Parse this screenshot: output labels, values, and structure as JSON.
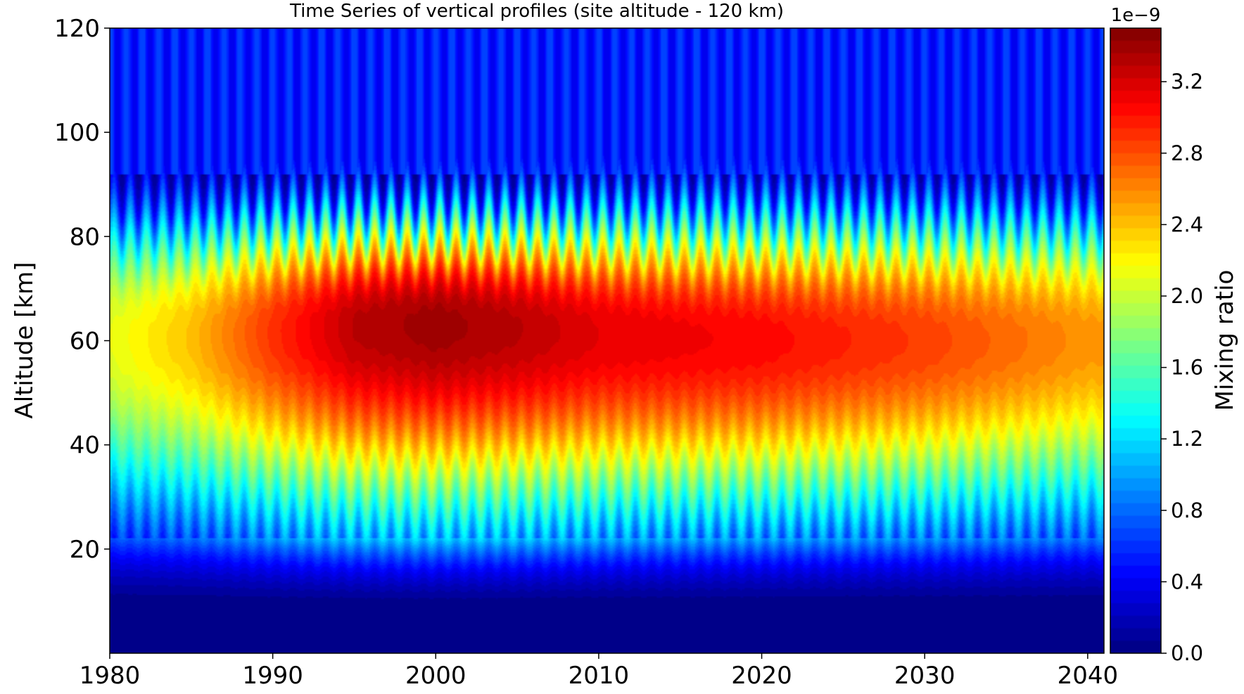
{
  "chart_data": {
    "type": "heatmap",
    "subtype": "filled-contour time-altitude cross-section",
    "title": "Time Series of vertical profiles (site altitude - 120 km)",
    "xlabel": "",
    "ylabel": "Altitude [km]",
    "xlim": [
      1980,
      2041
    ],
    "ylim": [
      0,
      120
    ],
    "xticks": [
      "1980",
      "1990",
      "2000",
      "2010",
      "2020",
      "2030",
      "2040"
    ],
    "yticks": [
      "20",
      "40",
      "60",
      "80",
      "100",
      "120"
    ],
    "grid": false,
    "colorbar": {
      "label": "Mixing ratio",
      "exponent_label": "1e−9",
      "vmin": 0.0,
      "vmax": 3.5,
      "levels": 50,
      "colormap": "jet",
      "ticks": [
        "0.0",
        "0.4",
        "0.8",
        "1.2",
        "1.6",
        "2.0",
        "2.4",
        "2.8",
        "3.2"
      ]
    },
    "features": {
      "max_value": 3.45,
      "max_year": 1999,
      "max_altitude_km": 63,
      "seasonal_cycle": "annual oscillation strongest above 85 km and below 30 km"
    },
    "series": [
      {
        "x": [
          1980,
          1985,
          1990,
          1995,
          2000,
          2005,
          2010,
          2020,
          2030,
          2040
        ],
        "y": [
          2.1,
          2.4,
          2.9,
          3.3,
          3.4,
          3.3,
          3.15,
          3.05,
          2.85,
          2.55
        ]
      }
    ]
  }
}
